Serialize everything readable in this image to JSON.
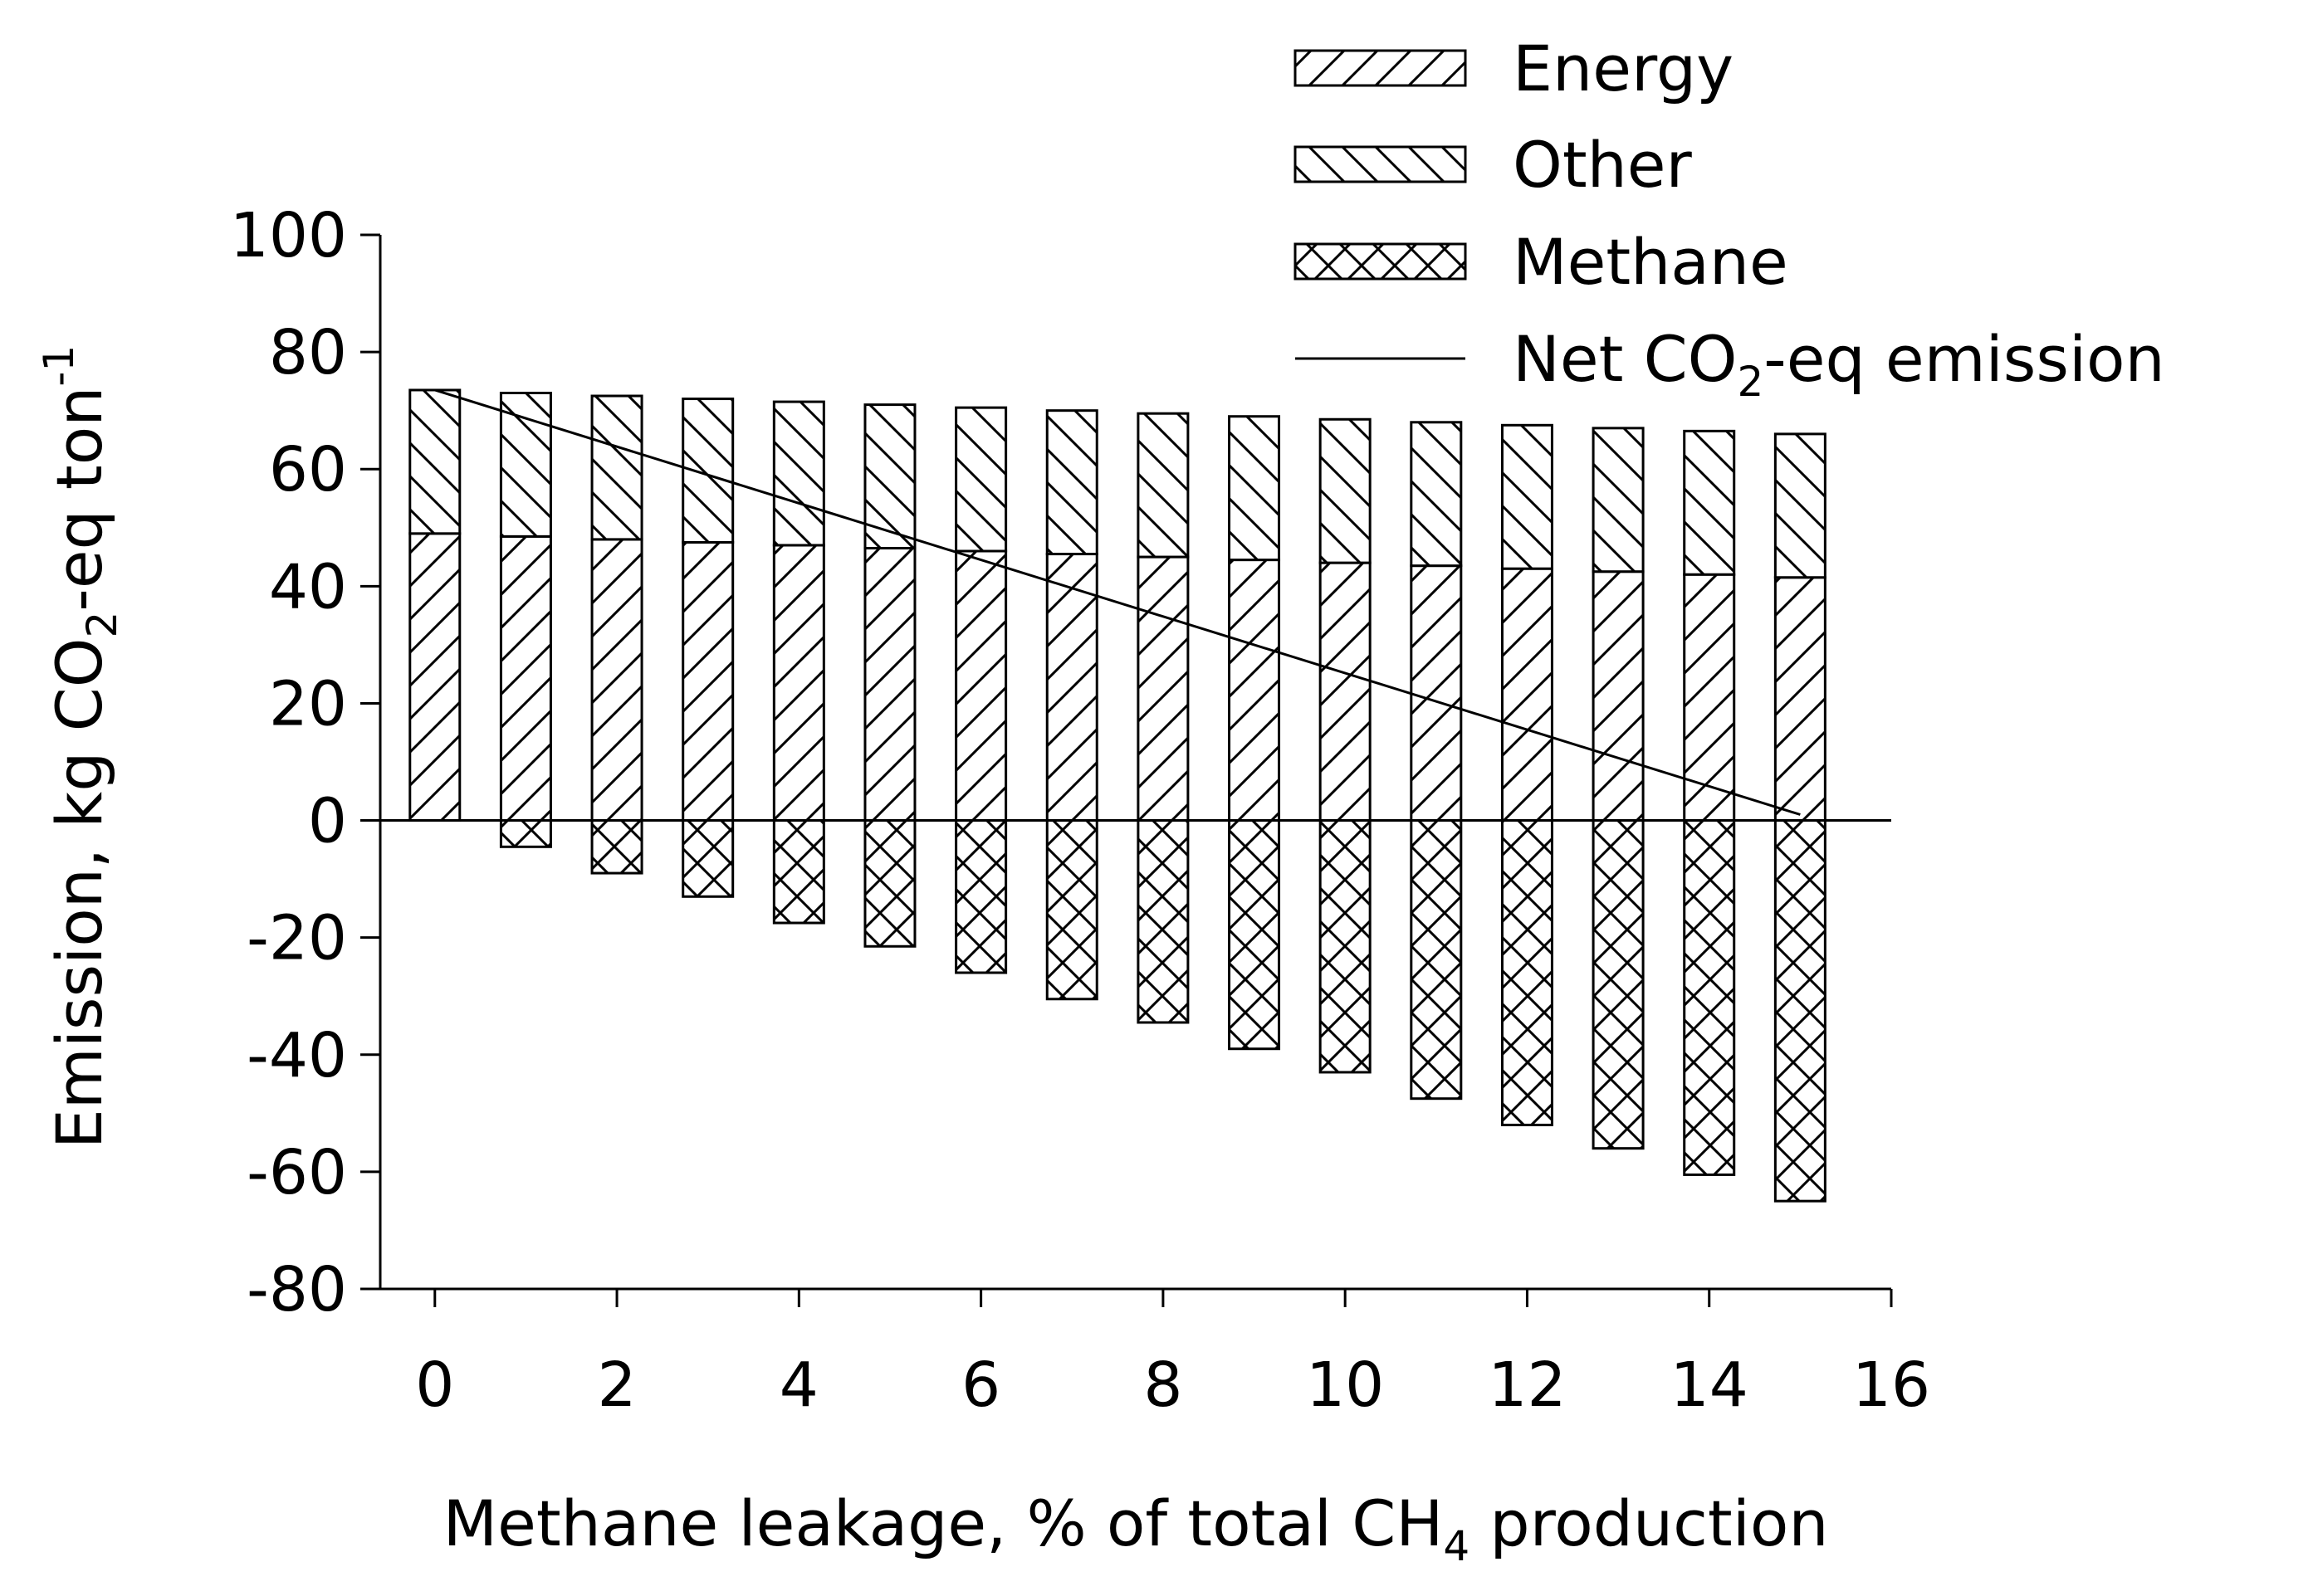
{
  "chart_data": {
    "type": "bar",
    "stacked": true,
    "x_label_parts": [
      "Methane leakage, % of total CH",
      "4",
      " production"
    ],
    "y_label_parts": [
      "Emission, kg CO",
      "2",
      "-eq ton",
      "-1"
    ],
    "xlim": [
      -0.6,
      16
    ],
    "ylim": [
      -80,
      100
    ],
    "xticks": [
      0,
      2,
      4,
      6,
      8,
      10,
      12,
      14,
      16
    ],
    "yticks": [
      -80,
      -60,
      -40,
      -20,
      0,
      20,
      40,
      60,
      80,
      100
    ],
    "x": [
      0,
      1,
      2,
      3,
      4,
      5,
      6,
      7,
      8,
      9,
      10,
      11,
      12,
      13,
      14,
      15
    ],
    "series": [
      {
        "name": "Energy",
        "pattern": "hatch-forward",
        "values": [
          49,
          48.5,
          48,
          47.5,
          47,
          46.5,
          46,
          45.5,
          45,
          44.5,
          44,
          43.5,
          43,
          42.5,
          42,
          41.5
        ]
      },
      {
        "name": "Other",
        "pattern": "hatch-back",
        "values": [
          24.5,
          24.5,
          24.5,
          24.5,
          24.5,
          24.5,
          24.5,
          24.5,
          24.5,
          24.5,
          24.5,
          24.5,
          24.5,
          24.5,
          24.5,
          24.5
        ]
      },
      {
        "name": "Methane",
        "pattern": "crosshatch",
        "values": [
          0,
          -4.5,
          -9,
          -13,
          -17.5,
          -21.5,
          -26,
          -30.5,
          -34.5,
          -39,
          -43,
          -47.5,
          -52,
          -56,
          -60.5,
          -65
        ]
      }
    ],
    "line_series": {
      "name_parts": [
        "Net CO",
        "2",
        "-eq emission"
      ],
      "x": [
        0,
        15
      ],
      "values": [
        73.5,
        1
      ]
    },
    "legend_position": "top-right",
    "grid": false,
    "colors": {
      "ink": "#000000",
      "background": "#ffffff"
    }
  }
}
